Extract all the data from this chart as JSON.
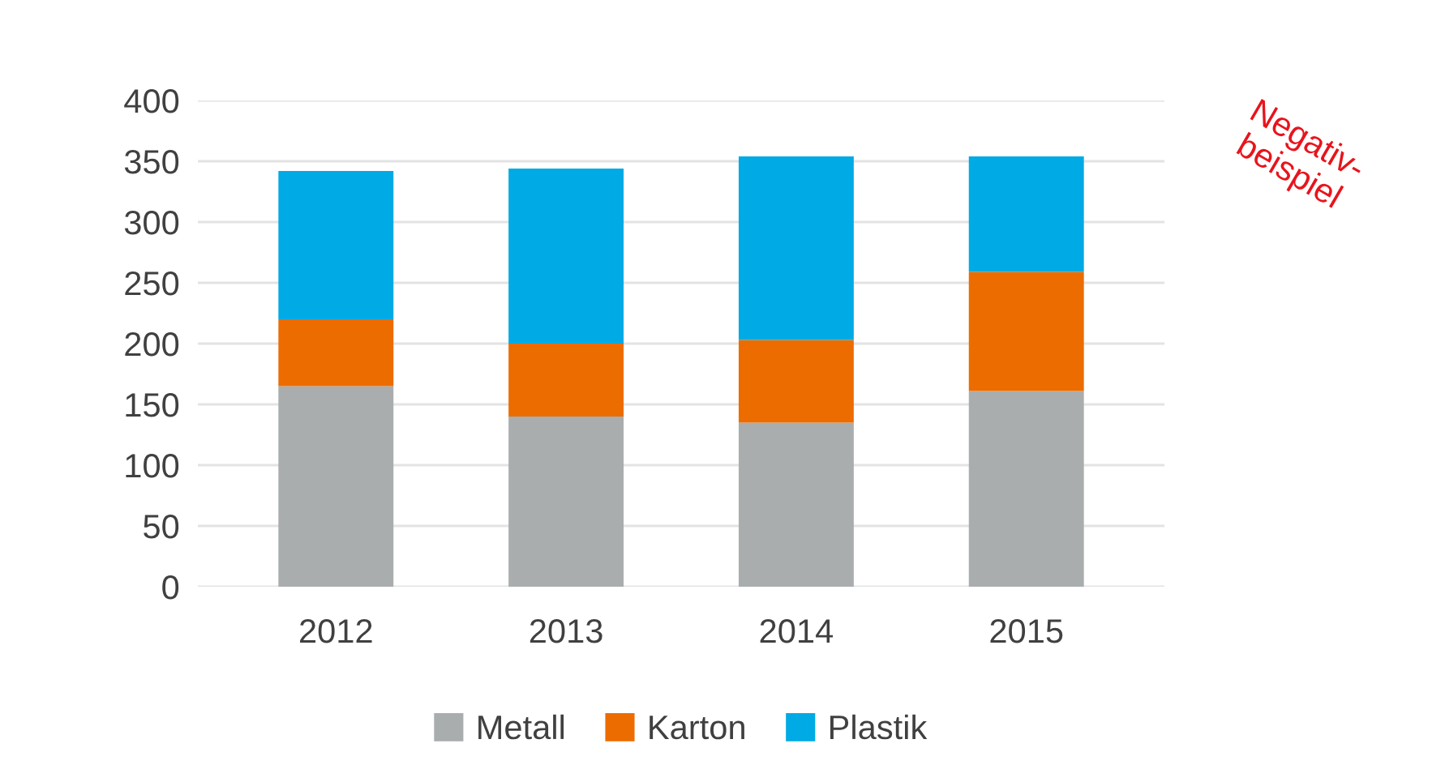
{
  "chart_data": {
    "type": "bar",
    "stacked": true,
    "categories": [
      "2012",
      "2013",
      "2014",
      "2015"
    ],
    "series": [
      {
        "name": "Metall",
        "color": "#a9adae",
        "values": [
          165,
          140,
          135,
          161
        ]
      },
      {
        "name": "Karton",
        "color": "#ec6c00",
        "values": [
          55,
          60,
          68,
          98
        ]
      },
      {
        "name": "Plastik",
        "color": "#00aae4",
        "values": [
          122,
          144,
          151,
          95
        ]
      }
    ],
    "ylim": [
      0,
      400
    ],
    "yticks": [
      0,
      50,
      100,
      150,
      200,
      250,
      300,
      350,
      400
    ],
    "grid": "y",
    "legend": "bottom",
    "annotations": [
      "Negativ-\nbeispiel"
    ]
  }
}
